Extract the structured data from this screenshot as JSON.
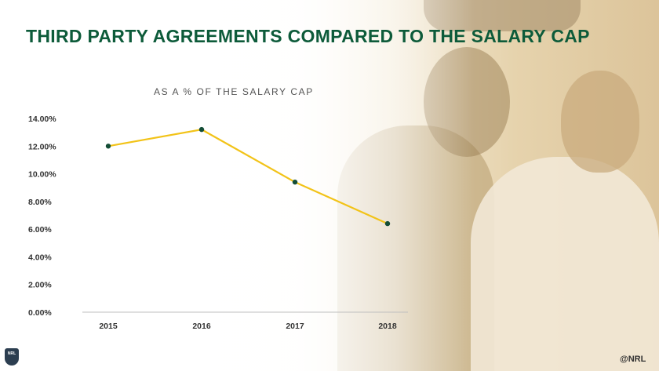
{
  "title": "THIRD PARTY AGREEMENTS COMPARED TO THE SALARY CAP",
  "logo_left": "NRL",
  "logo_right": "@NRL",
  "colors": {
    "title": "#0d5b3a",
    "line": "#f2c318",
    "marker": "#134d36",
    "axis": "#bfbfbf"
  },
  "chart_data": {
    "type": "line",
    "title": "AS A % OF THE SALARY CAP",
    "xlabel": "",
    "ylabel": "",
    "categories": [
      "2015",
      "2016",
      "2017",
      "2018"
    ],
    "series": [
      {
        "values": [
          12.0,
          13.2,
          9.4,
          6.4
        ]
      }
    ],
    "ylim": [
      0,
      14
    ],
    "yticks": [
      "0.00%",
      "2.00%",
      "4.00%",
      "6.00%",
      "8.00%",
      "10.00%",
      "12.00%",
      "14.00%"
    ],
    "grid": false,
    "legend": "none"
  }
}
